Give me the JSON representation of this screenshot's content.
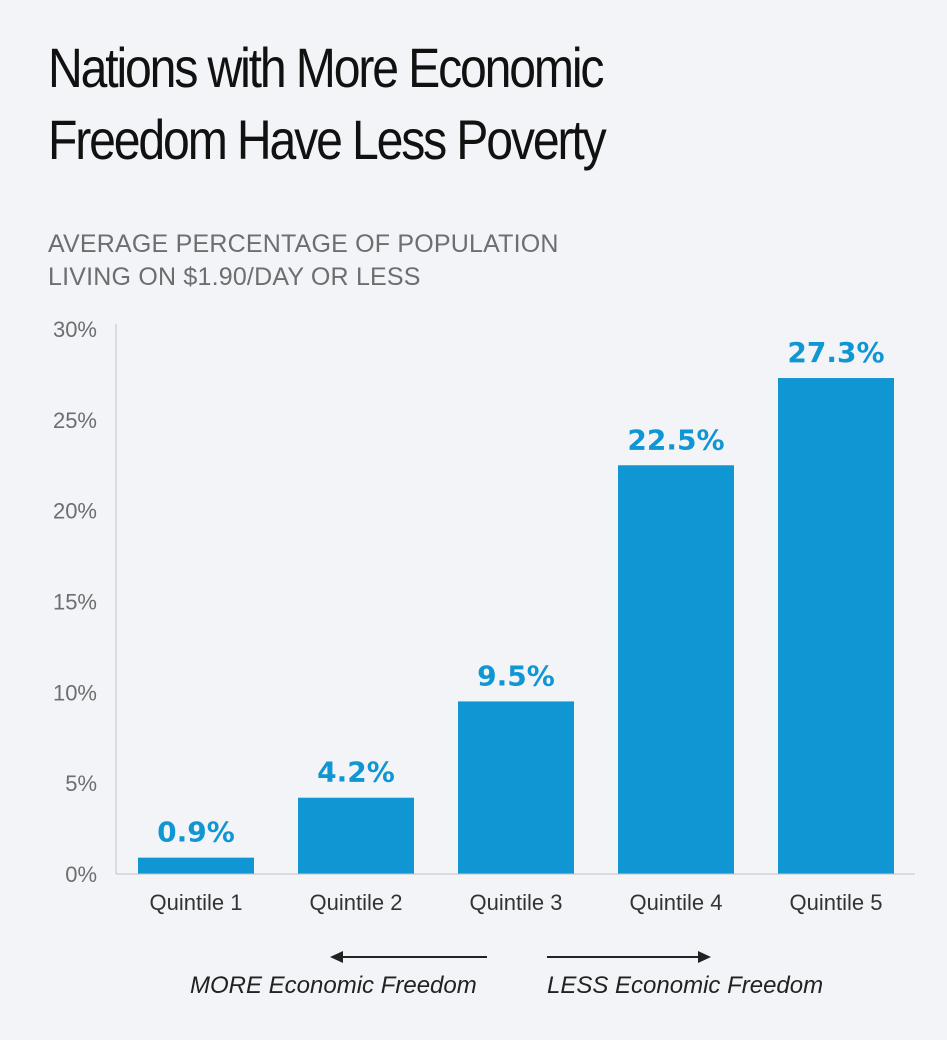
{
  "colors": {
    "bar": "#0f96d3",
    "label": "#0f96d3",
    "axis": "#bfc2c6",
    "background": "#f3f4f7"
  },
  "chart_data": {
    "type": "bar",
    "title": [
      "Nations with More Economic",
      "Freedom Have Less Poverty"
    ],
    "subtitle": [
      "AVERAGE PERCENTAGE OF POPULATION",
      "LIVING ON $1.90/DAY OR LESS"
    ],
    "categories": [
      "Quintile 1",
      "Quintile 2",
      "Quintile 3",
      "Quintile 4",
      "Quintile 5"
    ],
    "values": [
      0.9,
      4.2,
      9.5,
      22.5,
      27.3
    ],
    "value_labels": [
      "0.9%",
      "4.2%",
      "9.5%",
      "22.5%",
      "27.3%"
    ],
    "ylim": [
      0,
      30
    ],
    "yticks": [
      0,
      5,
      10,
      15,
      20,
      25,
      30
    ],
    "ytick_labels": [
      "0%",
      "5%",
      "10%",
      "15%",
      "20%",
      "25%",
      "30%"
    ],
    "grid": false,
    "annotations": {
      "left": "MORE Economic Freedom",
      "right": "LESS Economic Freedom"
    }
  }
}
